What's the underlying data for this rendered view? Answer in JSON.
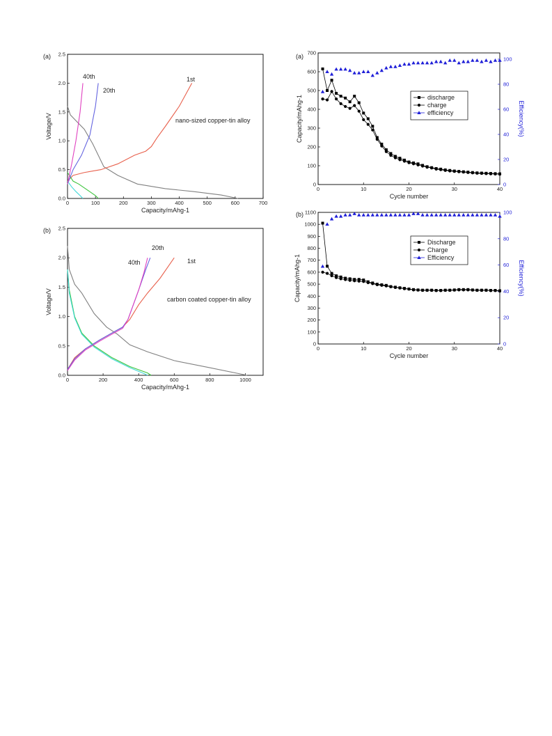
{
  "chart_data": [
    {
      "panel": "(a)",
      "type": "line",
      "xlabel": "Capacity/mAhg-1",
      "ylabel": "Voltage/V",
      "xlim": [
        0,
        700
      ],
      "ylim": [
        0,
        2.5
      ],
      "xticks": [
        0,
        100,
        200,
        300,
        400,
        500,
        600,
        700
      ],
      "yticks": [
        0.0,
        0.5,
        1.0,
        1.5,
        2.0,
        2.5
      ],
      "annotation": "nano-sized copper-tin alloy",
      "cycle_labels": [
        "1st",
        "20th",
        "40th"
      ],
      "series": [
        {
          "name": "1st",
          "role": "discharge",
          "color": "#808080",
          "x": [
            0,
            10,
            30,
            60,
            90,
            130,
            180,
            250,
            350,
            450,
            550,
            610
          ],
          "y": [
            1.6,
            1.45,
            1.35,
            1.2,
            0.95,
            0.55,
            0.4,
            0.25,
            0.17,
            0.12,
            0.06,
            0.0
          ]
        },
        {
          "name": "1st",
          "role": "charge",
          "color": "#e8604c",
          "x": [
            0,
            20,
            60,
            120,
            180,
            240,
            280,
            300,
            320,
            350,
            400,
            445
          ],
          "y": [
            0.3,
            0.4,
            0.45,
            0.5,
            0.6,
            0.75,
            0.82,
            0.9,
            1.05,
            1.25,
            1.6,
            2.0
          ]
        },
        {
          "name": "20th",
          "role": "discharge",
          "color": "#3cc43c",
          "x": [
            0,
            20,
            40,
            70,
            100,
            110
          ],
          "y": [
            0.45,
            0.3,
            0.25,
            0.15,
            0.05,
            0.0
          ]
        },
        {
          "name": "20th",
          "role": "charge",
          "color": "#6464e0",
          "x": [
            0,
            20,
            50,
            80,
            100,
            110
          ],
          "y": [
            0.25,
            0.5,
            0.75,
            1.1,
            1.6,
            2.0
          ]
        },
        {
          "name": "40th",
          "role": "discharge",
          "color": "#40d8d8",
          "x": [
            0,
            15,
            30,
            45,
            55
          ],
          "y": [
            0.3,
            0.2,
            0.12,
            0.05,
            0.0
          ]
        },
        {
          "name": "40th",
          "role": "charge",
          "color": "#e040c0",
          "x": [
            0,
            15,
            30,
            45,
            55
          ],
          "y": [
            0.25,
            0.6,
            1.0,
            1.5,
            2.0
          ]
        }
      ]
    },
    {
      "panel": "(b)",
      "type": "line",
      "xlabel": "Capacity/mAhg-1",
      "ylabel": "Voltage/V",
      "xlim": [
        0,
        1100
      ],
      "ylim": [
        0,
        2.5
      ],
      "xticks": [
        0,
        200,
        400,
        600,
        800,
        1000
      ],
      "yticks": [
        0.0,
        0.5,
        1.0,
        1.5,
        2.0,
        2.5
      ],
      "annotation": "carbon coated copper-tin alloy",
      "cycle_labels": [
        "1st",
        "20th",
        "40th"
      ],
      "series": [
        {
          "name": "1st",
          "role": "discharge",
          "color": "#808080",
          "x": [
            0,
            10,
            40,
            80,
            150,
            220,
            280,
            350,
            450,
            600,
            800,
            1010
          ],
          "y": [
            2.2,
            1.8,
            1.55,
            1.4,
            1.05,
            0.82,
            0.7,
            0.52,
            0.4,
            0.25,
            0.13,
            0.0
          ]
        },
        {
          "name": "1st",
          "role": "charge",
          "color": "#e8604c",
          "x": [
            0,
            40,
            100,
            180,
            250,
            310,
            350,
            400,
            450,
            520,
            600
          ],
          "y": [
            0.1,
            0.3,
            0.45,
            0.6,
            0.72,
            0.82,
            0.95,
            1.2,
            1.4,
            1.65,
            2.0
          ]
        },
        {
          "name": "20th",
          "role": "discharge",
          "color": "#3cc43c",
          "x": [
            0,
            10,
            40,
            80,
            150,
            250,
            350,
            450,
            470
          ],
          "y": [
            1.8,
            1.45,
            1.0,
            0.72,
            0.5,
            0.3,
            0.15,
            0.04,
            0.0
          ]
        },
        {
          "name": "20th",
          "role": "charge",
          "color": "#6464e0",
          "x": [
            0,
            40,
            100,
            180,
            250,
            310,
            340,
            370,
            400,
            440,
            465
          ],
          "y": [
            0.1,
            0.28,
            0.45,
            0.6,
            0.72,
            0.82,
            0.95,
            1.2,
            1.45,
            1.8,
            2.0
          ]
        },
        {
          "name": "40th",
          "role": "discharge",
          "color": "#40d8d8",
          "x": [
            0,
            10,
            40,
            80,
            150,
            250,
            350,
            430,
            450
          ],
          "y": [
            1.8,
            1.4,
            0.98,
            0.7,
            0.48,
            0.28,
            0.13,
            0.03,
            0.0
          ]
        },
        {
          "name": "40th",
          "role": "charge",
          "color": "#e040c0",
          "x": [
            0,
            40,
            100,
            180,
            250,
            310,
            340,
            370,
            400,
            430,
            450
          ],
          "y": [
            0.08,
            0.26,
            0.43,
            0.58,
            0.7,
            0.8,
            0.95,
            1.2,
            1.45,
            1.75,
            2.0
          ]
        }
      ]
    },
    {
      "panel": "(a)",
      "type": "line",
      "xlabel": "Cycle number",
      "ylabel": "Capacity/mAhg-1",
      "y2label": "Efficiency(%)",
      "xlim": [
        0,
        40
      ],
      "ylim": [
        0,
        700
      ],
      "y2lim": [
        0,
        105
      ],
      "xticks": [
        0,
        10,
        20,
        30,
        40
      ],
      "yticks": [
        0,
        100,
        200,
        300,
        400,
        500,
        600,
        700
      ],
      "y2ticks": [
        0,
        20,
        40,
        60,
        80,
        100
      ],
      "legend_position": "upper-right",
      "x": [
        1,
        2,
        3,
        4,
        5,
        6,
        7,
        8,
        9,
        10,
        11,
        12,
        13,
        14,
        15,
        16,
        17,
        18,
        19,
        20,
        21,
        22,
        23,
        24,
        25,
        26,
        27,
        28,
        29,
        30,
        31,
        32,
        33,
        34,
        35,
        36,
        37,
        38,
        39,
        40
      ],
      "series": [
        {
          "name": "discharge",
          "marker": "square",
          "axis": "left",
          "color": "#000000",
          "values": [
            615,
            500,
            555,
            485,
            470,
            460,
            440,
            470,
            435,
            380,
            350,
            310,
            250,
            215,
            185,
            165,
            150,
            140,
            130,
            120,
            115,
            110,
            102,
            95,
            90,
            85,
            82,
            78,
            75,
            72,
            70,
            68,
            66,
            64,
            62,
            61,
            60,
            59,
            58,
            57
          ]
        },
        {
          "name": "charge",
          "marker": "circle",
          "axis": "left",
          "color": "#000000",
          "values": [
            455,
            450,
            495,
            455,
            430,
            415,
            405,
            420,
            390,
            345,
            320,
            290,
            240,
            205,
            175,
            155,
            142,
            132,
            124,
            116,
            110,
            104,
            98,
            92,
            88,
            82,
            79,
            75,
            72,
            70,
            68,
            66,
            64,
            62,
            60,
            59,
            58,
            57,
            56,
            55
          ]
        },
        {
          "name": "efficiency",
          "marker": "triangle",
          "axis": "right",
          "color": "#1f1fd8",
          "values": [
            74,
            90,
            88,
            92,
            92,
            92,
            91,
            89,
            89,
            90,
            90,
            87,
            89,
            91,
            93,
            94,
            94,
            95,
            96,
            96,
            97,
            97,
            97,
            97,
            97,
            98,
            98,
            97,
            99,
            99,
            97,
            98,
            98,
            99,
            99,
            98,
            99,
            98,
            99,
            99
          ]
        }
      ]
    },
    {
      "panel": "(b)",
      "type": "line",
      "xlabel": "Cycle number",
      "ylabel": "Capacity/mAhg-1",
      "y2label": "Efficiency(%)",
      "xlim": [
        0,
        40
      ],
      "ylim": [
        0,
        1100
      ],
      "y2lim": [
        0,
        100
      ],
      "xticks": [
        0,
        10,
        20,
        30,
        40
      ],
      "yticks": [
        0,
        100,
        200,
        300,
        400,
        500,
        600,
        700,
        800,
        900,
        1000,
        1100
      ],
      "y2ticks": [
        0,
        20,
        40,
        60,
        80,
        100
      ],
      "legend_position": "upper-right",
      "x": [
        1,
        2,
        3,
        4,
        5,
        6,
        7,
        8,
        9,
        10,
        11,
        12,
        13,
        14,
        15,
        16,
        17,
        18,
        19,
        20,
        21,
        22,
        23,
        24,
        25,
        26,
        27,
        28,
        29,
        30,
        31,
        32,
        33,
        34,
        35,
        36,
        37,
        38,
        39,
        40
      ],
      "series": [
        {
          "name": "Discharge",
          "marker": "square",
          "axis": "left",
          "color": "#000000",
          "values": [
            1010,
            650,
            590,
            570,
            560,
            550,
            545,
            540,
            540,
            535,
            520,
            510,
            500,
            495,
            490,
            480,
            475,
            470,
            465,
            460,
            455,
            452,
            450,
            450,
            450,
            448,
            448,
            450,
            450,
            452,
            455,
            455,
            455,
            452,
            450,
            450,
            450,
            448,
            448,
            445
          ]
        },
        {
          "name": "Charge",
          "marker": "circle",
          "axis": "left",
          "color": "#000000",
          "values": [
            600,
            590,
            570,
            555,
            545,
            538,
            532,
            528,
            525,
            522,
            512,
            504,
            495,
            490,
            485,
            478,
            472,
            468,
            462,
            458,
            452,
            450,
            448,
            448,
            448,
            446,
            446,
            448,
            448,
            450,
            452,
            452,
            452,
            450,
            448,
            448,
            448,
            446,
            446,
            442
          ]
        },
        {
          "name": "Efficiency",
          "marker": "triangle",
          "axis": "right",
          "color": "#1f1fd8",
          "values": [
            59,
            91,
            95,
            97,
            97,
            98,
            98,
            99,
            98,
            98,
            98,
            98,
            98,
            98,
            98,
            98,
            98,
            98,
            98,
            98,
            99,
            99,
            98,
            98,
            98,
            98,
            98,
            98,
            98,
            98,
            98,
            98,
            98,
            98,
            98,
            98,
            98,
            98,
            98,
            97
          ]
        }
      ]
    }
  ]
}
